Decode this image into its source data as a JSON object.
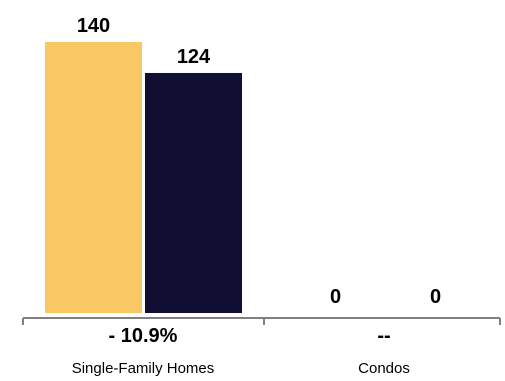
{
  "chart_data": {
    "type": "bar",
    "categories": [
      "Single-Family Homes",
      "Condos"
    ],
    "series": [
      {
        "values": [
          140,
          0
        ],
        "color": "#F9C863"
      },
      {
        "values": [
          124,
          0
        ],
        "color": "#100E33"
      }
    ],
    "data_labels": [
      [
        "140",
        "0"
      ],
      [
        "124",
        "0"
      ]
    ],
    "change_labels": [
      "- 10.9%",
      "--"
    ],
    "ylim": [
      0,
      140
    ],
    "grid": false,
    "legend": "none",
    "axis_color": "#808080"
  }
}
